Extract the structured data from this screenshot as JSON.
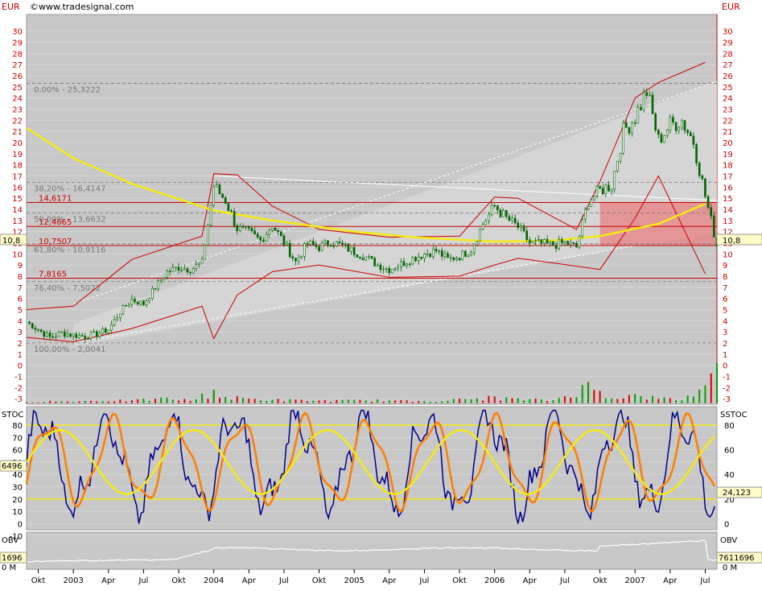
{
  "header": {
    "source_label": "www.tradesignal.com",
    "currency_left": "EUR",
    "currency_right": "EUR"
  },
  "colors": {
    "panel_bg": "#c8c8c8",
    "grid": "#e0e0e0",
    "axis_red": "#cc0000",
    "candles": "#006400",
    "bollinger": "#cc0000",
    "moving_average": "#f5ea14",
    "fibonacci": "#777777",
    "resistance_zone": "#e88080",
    "stoch_fast": "#00008b",
    "stoch_slow": "#ff7f00",
    "stoch_signal": "#f5ea14",
    "obv_line": "#ffffff"
  },
  "chart_data": [
    {
      "type": "candlestick",
      "panel": "price",
      "y_unit": "EUR",
      "ylim": [
        -3.5,
        31.5
      ],
      "y_ticks": [
        30,
        29,
        28,
        27,
        26,
        25,
        24,
        23,
        22,
        21,
        20,
        19,
        18,
        17,
        16,
        15,
        14,
        13,
        12,
        11,
        10,
        9,
        8,
        7,
        6,
        5,
        4,
        3,
        2,
        1,
        0,
        -1,
        -2,
        -3
      ],
      "x_labels": [
        "Okt",
        "2003",
        "Apr",
        "Jul",
        "Okt",
        "2004",
        "Apr",
        "Jul",
        "Okt",
        "2005",
        "Apr",
        "Jul",
        "Okt",
        "2006",
        "Apr",
        "Jul",
        "Okt",
        "2007",
        "Apr",
        "Jul"
      ],
      "x_label_dates": [
        "2002-10",
        "2003-01",
        "2003-04",
        "2003-07",
        "2003-10",
        "2004-01",
        "2004-04",
        "2004-07",
        "2004-10",
        "2005-01",
        "2005-04",
        "2005-07",
        "2005-10",
        "2006-01",
        "2006-04",
        "2006-07",
        "2006-10",
        "2007-01",
        "2007-04",
        "2007-07"
      ],
      "x_range": [
        "2002-09",
        "2007-08"
      ],
      "last_price_label": "10,8",
      "price_path": [
        [
          "2002-09",
          3.9
        ],
        [
          "2002-10",
          3.2
        ],
        [
          "2002-11",
          2.5
        ],
        [
          "2002-12",
          2.9
        ],
        [
          "2003-01",
          2.7
        ],
        [
          "2003-02",
          2.6
        ],
        [
          "2003-03",
          2.8
        ],
        [
          "2003-04",
          3.2
        ],
        [
          "2003-05",
          4.8
        ],
        [
          "2003-06",
          5.9
        ],
        [
          "2003-07",
          5.5
        ],
        [
          "2003-08",
          7.0
        ],
        [
          "2003-09",
          8.4
        ],
        [
          "2003-10",
          8.8
        ],
        [
          "2003-11",
          8.6
        ],
        [
          "2003-12",
          9.2
        ],
        [
          "2004-01",
          16.1
        ],
        [
          "2004-02",
          14.8
        ],
        [
          "2004-03",
          12.3
        ],
        [
          "2004-04",
          11.9
        ],
        [
          "2004-05",
          11.2
        ],
        [
          "2004-06",
          12.6
        ],
        [
          "2004-07",
          11.0
        ],
        [
          "2004-08",
          9.3
        ],
        [
          "2004-09",
          10.9
        ],
        [
          "2004-10",
          10.6
        ],
        [
          "2004-11",
          11.1
        ],
        [
          "2004-12",
          10.7
        ],
        [
          "2005-01",
          10.2
        ],
        [
          "2005-02",
          9.7
        ],
        [
          "2005-03",
          9.0
        ],
        [
          "2005-04",
          8.6
        ],
        [
          "2005-05",
          9.1
        ],
        [
          "2005-06",
          9.6
        ],
        [
          "2005-07",
          10.0
        ],
        [
          "2005-08",
          10.3
        ],
        [
          "2005-09",
          9.5
        ],
        [
          "2005-10",
          9.8
        ],
        [
          "2005-11",
          10.4
        ],
        [
          "2005-12",
          12.7
        ],
        [
          "2006-01",
          14.3
        ],
        [
          "2006-02",
          13.2
        ],
        [
          "2006-03",
          12.4
        ],
        [
          "2006-04",
          11.0
        ],
        [
          "2006-05",
          10.9
        ],
        [
          "2006-06",
          10.8
        ],
        [
          "2006-07",
          11.0
        ],
        [
          "2006-08",
          10.6
        ],
        [
          "2006-09",
          14.8
        ],
        [
          "2006-10",
          15.7
        ],
        [
          "2006-11",
          16.2
        ],
        [
          "2006-12",
          21.0
        ],
        [
          "2007-01",
          22.3
        ],
        [
          "2007-02",
          24.6
        ],
        [
          "2007-03",
          20.2
        ],
        [
          "2007-04",
          21.6
        ],
        [
          "2007-05",
          22.0
        ],
        [
          "2007-06",
          20.1
        ],
        [
          "2007-07",
          15.2
        ],
        [
          "2007-08",
          10.8
        ]
      ],
      "indicators": {
        "moving_average": [
          [
            "2002-09",
            21.3
          ],
          [
            "2003-01",
            18.6
          ],
          [
            "2003-06",
            16.3
          ],
          [
            "2004-01",
            13.9
          ],
          [
            "2004-06",
            13.0
          ],
          [
            "2005-01",
            12.0
          ],
          [
            "2005-06",
            11.5
          ],
          [
            "2006-01",
            11.1
          ],
          [
            "2006-06",
            11.2
          ],
          [
            "2006-10",
            11.6
          ],
          [
            "2007-03",
            12.7
          ],
          [
            "2007-07",
            14.5
          ]
        ],
        "bollinger_upper": [
          [
            "2002-09",
            5.0
          ],
          [
            "2003-01",
            5.3
          ],
          [
            "2003-06",
            9.5
          ],
          [
            "2003-12",
            11.6
          ],
          [
            "2004-01",
            17.2
          ],
          [
            "2004-03",
            17.1
          ],
          [
            "2004-06",
            14.3
          ],
          [
            "2004-10",
            12.2
          ],
          [
            "2005-04",
            11.5
          ],
          [
            "2005-10",
            11.6
          ],
          [
            "2006-01",
            15.1
          ],
          [
            "2006-03",
            15.0
          ],
          [
            "2006-08",
            12.2
          ],
          [
            "2006-10",
            16.5
          ],
          [
            "2007-01",
            24.0
          ],
          [
            "2007-03",
            25.4
          ],
          [
            "2007-07",
            27.2
          ]
        ],
        "bollinger_lower": [
          [
            "2002-09",
            2.5
          ],
          [
            "2003-01",
            2.1
          ],
          [
            "2003-06",
            3.3
          ],
          [
            "2003-12",
            5.3
          ],
          [
            "2004-01",
            2.4
          ],
          [
            "2004-03",
            6.3
          ],
          [
            "2004-06",
            8.4
          ],
          [
            "2004-10",
            9.0
          ],
          [
            "2005-04",
            7.9
          ],
          [
            "2005-10",
            8.0
          ],
          [
            "2006-01",
            9.0
          ],
          [
            "2006-03",
            9.6
          ],
          [
            "2006-08",
            8.9
          ],
          [
            "2006-10",
            8.6
          ],
          [
            "2007-01",
            13.2
          ],
          [
            "2007-03",
            17.0
          ],
          [
            "2007-07",
            8.2
          ]
        ]
      },
      "fibonacci_levels": [
        {
          "label": "0,00% - 25,3222",
          "value": 25.3222
        },
        {
          "label": "38,20% - 16,4147",
          "value": 16.4147
        },
        {
          "label": "50,00% - 13,6632",
          "value": 13.6632
        },
        {
          "label": "61,80% - 10,9116",
          "value": 10.9116
        },
        {
          "label": "76,40% - 7,5072",
          "value": 7.5072
        },
        {
          "label": "100,00% - 2,0041",
          "value": 2.0041
        }
      ],
      "horizontal_levels": [
        {
          "label": "14,6171",
          "value": 14.6171
        },
        {
          "label": "12,4665",
          "value": 12.4665
        },
        {
          "label": "10,7507",
          "value": 10.7507
        },
        {
          "label": "7,8165",
          "value": 7.8165
        }
      ],
      "resistance_zone": {
        "from_date": "2006-10",
        "to_date": "2007-08",
        "low": 10.75,
        "high": 14.62
      },
      "volume": [
        [
          "2002-10",
          0.15
        ],
        [
          "2002-11",
          0.2
        ],
        [
          "2003-01",
          0.18
        ],
        [
          "2003-04",
          0.3
        ],
        [
          "2003-06",
          0.25
        ],
        [
          "2003-09",
          0.5
        ],
        [
          "2003-11",
          0.3
        ],
        [
          "2004-01",
          1.2
        ],
        [
          "2004-02",
          0.6
        ],
        [
          "2004-05",
          0.4
        ],
        [
          "2004-08",
          0.3
        ],
        [
          "2004-11",
          0.25
        ],
        [
          "2005-03",
          0.3
        ],
        [
          "2005-06",
          0.2
        ],
        [
          "2005-09",
          0.3
        ],
        [
          "2006-01",
          0.6
        ],
        [
          "2006-03",
          0.4
        ],
        [
          "2006-06",
          0.3
        ],
        [
          "2006-09",
          1.8
        ],
        [
          "2006-11",
          0.7
        ],
        [
          "2007-01",
          0.8
        ],
        [
          "2007-03",
          0.5
        ],
        [
          "2007-05",
          0.4
        ],
        [
          "2007-07",
          1.6
        ],
        [
          "2007-08",
          3.6
        ]
      ]
    },
    {
      "type": "line",
      "panel": "stochastic",
      "title": "STOC",
      "right_title": "SSTOC",
      "ylim": [
        -5,
        95
      ],
      "y_ticks": [
        80,
        70,
        60,
        50,
        40,
        30,
        20,
        10,
        0,
        -10
      ],
      "y_ticks_right": [
        80,
        60,
        40,
        20,
        0
      ],
      "left_value_label": "6496",
      "right_value_label": "24,123",
      "reference_lines": [
        80,
        20
      ],
      "series": []
    },
    {
      "type": "line",
      "panel": "obv",
      "title": "OBV",
      "left_value_label": "1696",
      "right_value_label": "7611696",
      "left_axis_label": "0 M",
      "right_axis_label": "0 M",
      "series": []
    }
  ]
}
